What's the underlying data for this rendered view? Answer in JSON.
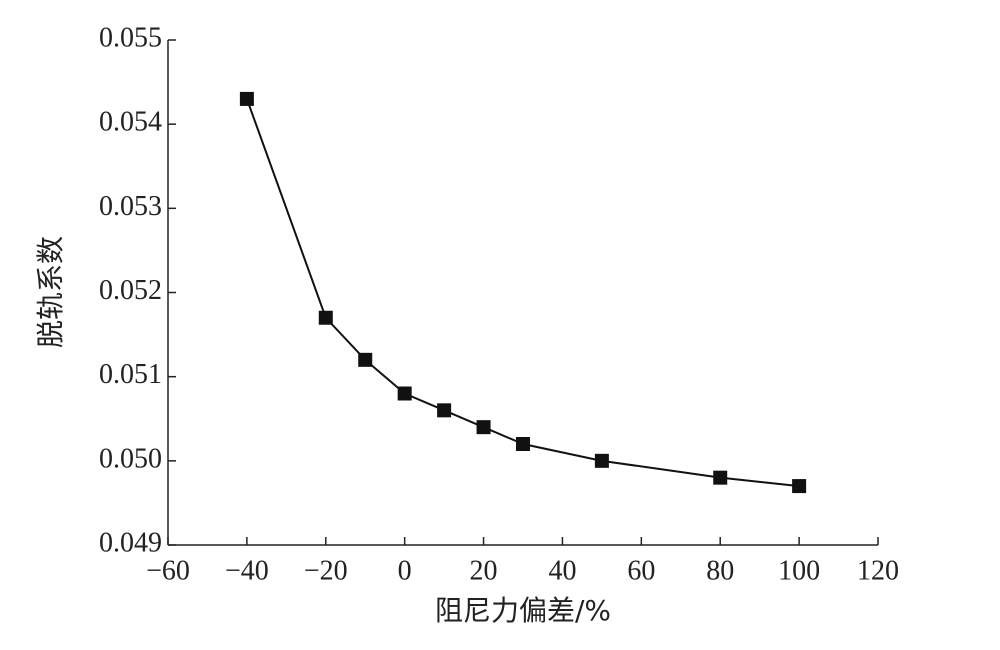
{
  "chart_data": {
    "type": "line",
    "x_label": "阻尼力偏差/%",
    "y_label": "脱轨系数",
    "x": [
      -40,
      -20,
      -10,
      0,
      10,
      20,
      30,
      50,
      80,
      100
    ],
    "series": [
      {
        "color": "#111111",
        "values": [
          0.0543,
          0.0517,
          0.0512,
          0.0508,
          0.0506,
          0.0504,
          0.0502,
          0.05,
          0.0498,
          0.0497
        ]
      }
    ],
    "xlim": [
      -60,
      120
    ],
    "xticks": [
      {
        "value": -60,
        "label": "−60"
      },
      {
        "value": -40,
        "label": "−40"
      },
      {
        "value": -20,
        "label": "−20"
      },
      0,
      20,
      40,
      60,
      80,
      100,
      120
    ],
    "ylim": [
      0.049,
      0.055
    ],
    "yticks": [
      0.049,
      {
        "value": 0.05,
        "label": "0.050"
      },
      0.051,
      0.052,
      0.053,
      0.054,
      0.055
    ],
    "marker": "square"
  }
}
